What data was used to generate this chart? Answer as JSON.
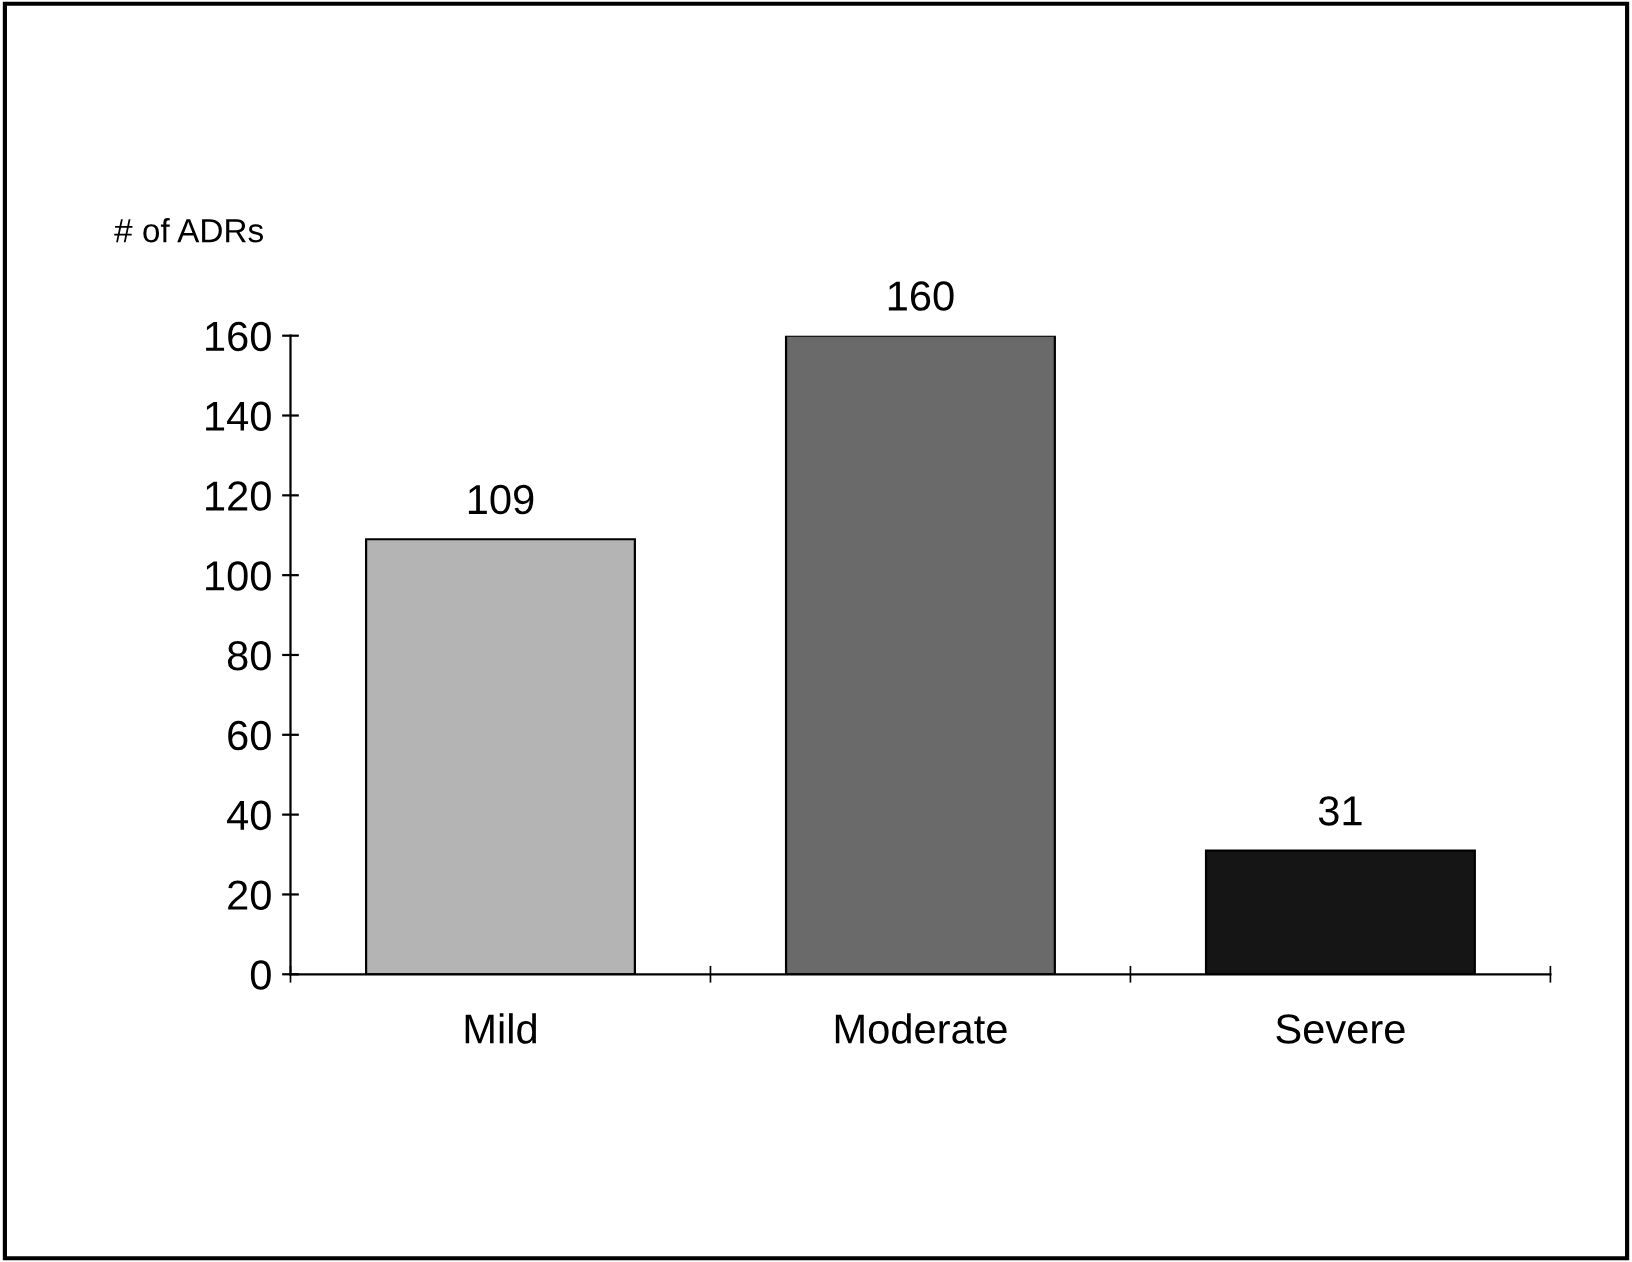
{
  "chart_data": {
    "type": "bar",
    "ylabel": "# of ADRs",
    "categories": [
      "Mild",
      "Moderate",
      "Severe"
    ],
    "values": [
      109,
      160,
      31
    ],
    "colors": [
      "#b4b4b4",
      "#6a6a6a",
      "#151515"
    ],
    "ylim": [
      0,
      160
    ],
    "yticks": [
      0,
      20,
      40,
      60,
      80,
      100,
      120,
      140,
      160
    ],
    "grid": false,
    "data_labels": true
  }
}
